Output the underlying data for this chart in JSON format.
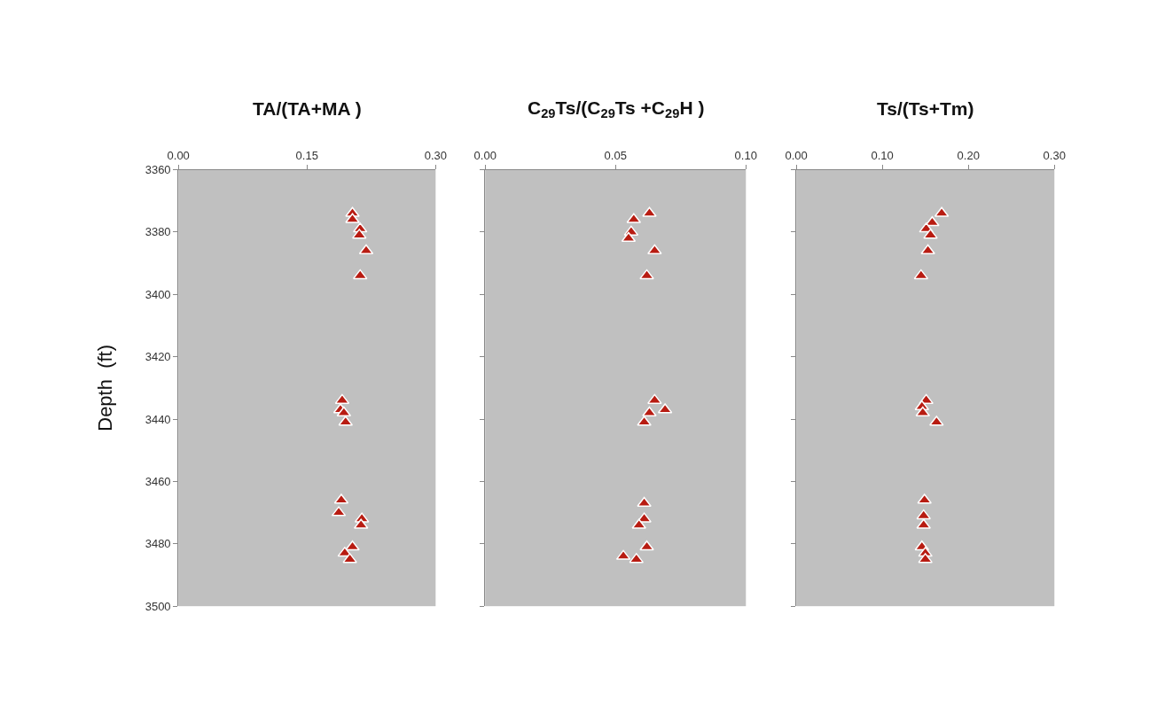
{
  "chart_data": [
    {
      "type": "scatter",
      "title": "TA/(TA+MA )",
      "ylabel": "Depth  (ft)",
      "marker": "triangle",
      "grid": false,
      "xlim": [
        0,
        0.3
      ],
      "xticks": [
        {
          "value": 0,
          "label": "0.00"
        },
        {
          "value": 0.15,
          "label": "0.15"
        },
        {
          "value": 0.3,
          "label": "0.30"
        }
      ],
      "ylim": [
        3500,
        3360
      ],
      "yticks": [
        3360,
        3380,
        3400,
        3420,
        3440,
        3460,
        3480,
        3500
      ],
      "series": [
        {
          "color": "#b81c12",
          "x": [
            0.203,
            0.203,
            0.212,
            0.211,
            0.219,
            0.212,
            0.191,
            0.189,
            0.193,
            0.195,
            0.19,
            0.187,
            0.214,
            0.213,
            0.203,
            0.194,
            0.2
          ],
          "values": [
            3374,
            3376,
            3379,
            3381,
            3386,
            3394,
            3434,
            3437,
            3438,
            3441,
            3466,
            3470,
            3472,
            3474,
            3481,
            3483,
            3485
          ]
        }
      ]
    },
    {
      "type": "scatter",
      "title": "C$_{29}$Ts/(C$_{29}$Ts +C$_{29}$H )",
      "marker": "triangle",
      "grid": false,
      "tick_labels": "x",
      "xlim": [
        0,
        0.1
      ],
      "xticks": [
        {
          "value": 0,
          "label": "0.00"
        },
        {
          "value": 0.05,
          "label": "0.05"
        },
        {
          "value": 0.1,
          "label": "0.10"
        }
      ],
      "ylim": [
        3500,
        3360
      ],
      "yticks": [
        {
          "value": 3360,
          "label": null
        },
        {
          "value": 3380,
          "label": null
        },
        {
          "value": 3400,
          "label": null
        },
        {
          "value": 3420,
          "label": null
        },
        {
          "value": 3440,
          "label": null
        },
        {
          "value": 3460,
          "label": null
        },
        {
          "value": 3480,
          "label": null
        },
        {
          "value": 3500,
          "label": null
        }
      ],
      "series": [
        {
          "color": "#b81c12",
          "x": [
            0.063,
            0.057,
            0.056,
            0.055,
            0.065,
            0.062,
            0.065,
            0.069,
            0.063,
            0.061,
            0.061,
            0.061,
            0.059,
            0.062,
            0.053,
            0.058
          ],
          "values": [
            3374,
            3376,
            3380,
            3382,
            3386,
            3394,
            3434,
            3437,
            3438,
            3441,
            3467,
            3472,
            3474,
            3481,
            3484,
            3485
          ]
        }
      ]
    },
    {
      "type": "scatter",
      "title": "Ts/(Ts+Tm)",
      "marker": "triangle",
      "grid": false,
      "tick_labels": "x",
      "xlim": [
        0,
        0.3
      ],
      "xticks": [
        {
          "value": 0,
          "label": "0.00"
        },
        {
          "value": 0.1,
          "label": "0.10"
        },
        {
          "value": 0.2,
          "label": "0.20"
        },
        {
          "value": 0.3,
          "label": "0.30"
        }
      ],
      "ylim": [
        3500,
        3360
      ],
      "yticks": [
        {
          "value": 3360,
          "label": null
        },
        {
          "value": 3380,
          "label": null
        },
        {
          "value": 3400,
          "label": null
        },
        {
          "value": 3420,
          "label": null
        },
        {
          "value": 3440,
          "label": null
        },
        {
          "value": 3460,
          "label": null
        },
        {
          "value": 3480,
          "label": null
        },
        {
          "value": 3500,
          "label": null
        }
      ],
      "series": [
        {
          "color": "#b81c12",
          "x": [
            0.169,
            0.158,
            0.151,
            0.156,
            0.153,
            0.145,
            0.151,
            0.146,
            0.147,
            0.163,
            0.149,
            0.148,
            0.148,
            0.146,
            0.15,
            0.15
          ],
          "values": [
            3374,
            3377,
            3379,
            3381,
            3386,
            3394,
            3434,
            3436,
            3438,
            3441,
            3466,
            3471,
            3474,
            3481,
            3483,
            3485
          ]
        }
      ]
    }
  ]
}
